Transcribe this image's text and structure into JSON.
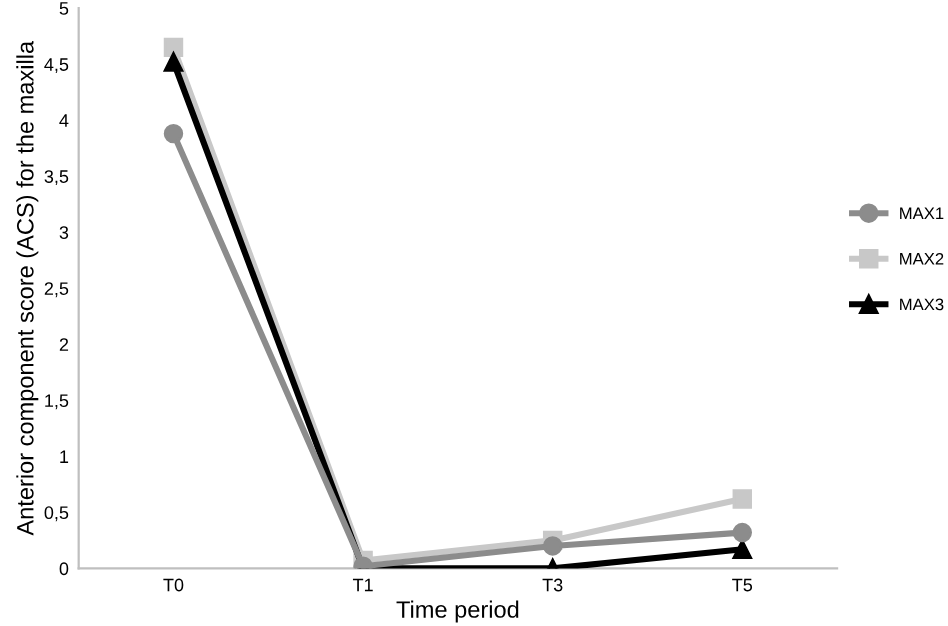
{
  "chart_data": {
    "type": "line",
    "xlabel": "Time period",
    "ylabel": "Anterior component score (ACS) for the maxilla",
    "categories": [
      "T0",
      "T1",
      "T3",
      "T5"
    ],
    "series": [
      {
        "name": "MAX1",
        "color": "#8c8c8c",
        "marker": "circle",
        "values": [
          3.88,
          0.02,
          0.2,
          0.32
        ]
      },
      {
        "name": "MAX2",
        "color": "#c8c8c8",
        "marker": "square",
        "values": [
          4.65,
          0.07,
          0.25,
          0.62
        ]
      },
      {
        "name": "MAX3",
        "color": "#000000",
        "marker": "triangle",
        "values": [
          4.52,
          0,
          0,
          0.17
        ]
      }
    ],
    "ylim": [
      0,
      5
    ],
    "yticks": [
      0,
      {
        "value": 0.5,
        "label": "0,5"
      },
      1,
      {
        "value": 1.5,
        "label": "1,5"
      },
      2,
      {
        "value": 2.5,
        "label": "2,5"
      },
      3,
      {
        "value": 3.5,
        "label": "3,5"
      },
      4,
      {
        "value": 4.5,
        "label": "4,5"
      },
      5
    ],
    "grid": false,
    "legend": "right",
    "line_style": "solid"
  }
}
